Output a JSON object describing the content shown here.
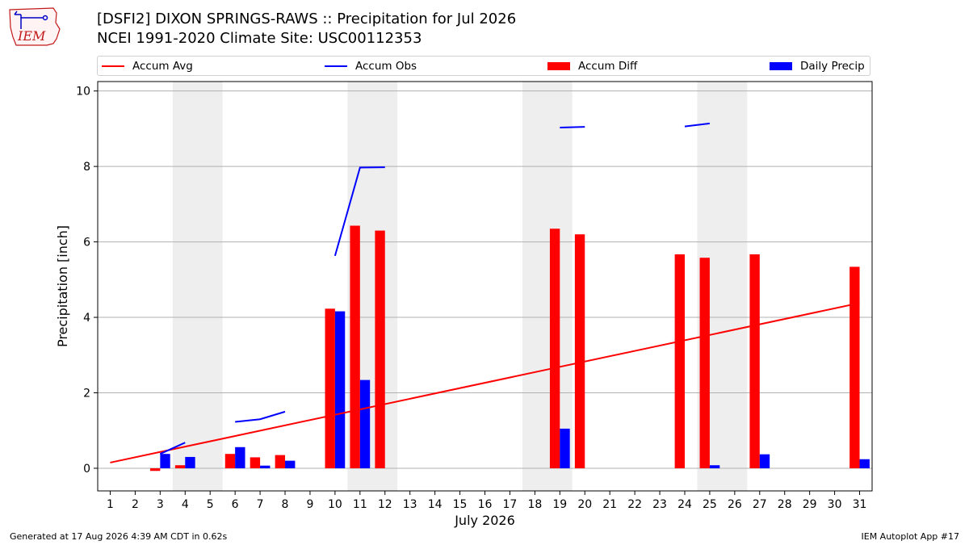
{
  "header": {
    "title_line1": "[DSFI2] DIXON SPRINGS-RAWS :: Precipitation for Jul 2026",
    "title_line2": "NCEI 1991-2020 Climate Site: USC00112353",
    "logo_text": "IEM"
  },
  "footer": {
    "generated": "Generated at 17 Aug 2026 4:39 AM CDT in 0.62s",
    "app": "IEM Autoplot App #17"
  },
  "colors": {
    "accum_avg": "#ff0000",
    "accum_obs": "#0000ff",
    "accum_diff": "#ff0000",
    "daily_precip": "#0000ff",
    "weekend_shade": "#eeeeee",
    "grid": "#b0b0b0"
  },
  "chart_data": {
    "type": "bar",
    "xlabel": "July 2026",
    "ylabel": "Precipitation [inch]",
    "ylim": [
      -0.6,
      10.25
    ],
    "yticks": [
      0,
      2,
      4,
      6,
      8,
      10
    ],
    "xlim": [
      0.5,
      31.5
    ],
    "days": [
      1,
      2,
      3,
      4,
      5,
      6,
      7,
      8,
      9,
      10,
      11,
      12,
      13,
      14,
      15,
      16,
      17,
      18,
      19,
      20,
      21,
      22,
      23,
      24,
      25,
      26,
      27,
      28,
      29,
      30,
      31
    ],
    "weekend_shading": [
      [
        3.5,
        5.5
      ],
      [
        10.5,
        12.5
      ],
      [
        17.5,
        19.5
      ],
      [
        24.5,
        26.5
      ]
    ],
    "grid": "horizontal",
    "legend": {
      "placement": "top",
      "entries": [
        {
          "label": "Accum Avg",
          "kind": "line",
          "color": "#ff0000"
        },
        {
          "label": "Accum Obs",
          "kind": "line",
          "color": "#0000ff"
        },
        {
          "label": "Accum Diff",
          "kind": "bar",
          "color": "#ff0000"
        },
        {
          "label": "Daily Precip",
          "kind": "bar",
          "color": "#0000ff"
        }
      ]
    },
    "series": [
      {
        "name": "Accum Avg",
        "kind": "line",
        "x": [
          1,
          31
        ],
        "values": [
          0.15,
          4.38
        ]
      },
      {
        "name": "Accum Obs",
        "kind": "line",
        "segments": [
          {
            "x": [
              3,
              4
            ],
            "values": [
              0.38,
              0.68
            ]
          },
          {
            "x": [
              6,
              7,
              8
            ],
            "values": [
              1.23,
              1.3,
              1.5
            ]
          },
          {
            "x": [
              10,
              11,
              12
            ],
            "values": [
              5.63,
              7.97,
              7.98
            ]
          },
          {
            "x": [
              19,
              20
            ],
            "values": [
              9.03,
              9.05
            ]
          },
          {
            "x": [
              24,
              25
            ],
            "values": [
              9.06,
              9.14
            ]
          }
        ]
      },
      {
        "name": "Accum Diff",
        "kind": "bar",
        "x": [
          3,
          4,
          6,
          7,
          8,
          10,
          11,
          12,
          19,
          20,
          24,
          25,
          27,
          31
        ],
        "values": [
          -0.07,
          0.08,
          0.38,
          0.29,
          0.35,
          4.23,
          6.43,
          6.3,
          6.35,
          6.2,
          5.67,
          5.58,
          5.67,
          5.34
        ]
      },
      {
        "name": "Daily Precip",
        "kind": "bar",
        "x": [
          3,
          4,
          6,
          7,
          8,
          10,
          11,
          19,
          25,
          27,
          31
        ],
        "values": [
          0.38,
          0.3,
          0.56,
          0.07,
          0.2,
          4.16,
          2.34,
          1.05,
          0.08,
          0.37,
          0.24
        ]
      }
    ]
  }
}
